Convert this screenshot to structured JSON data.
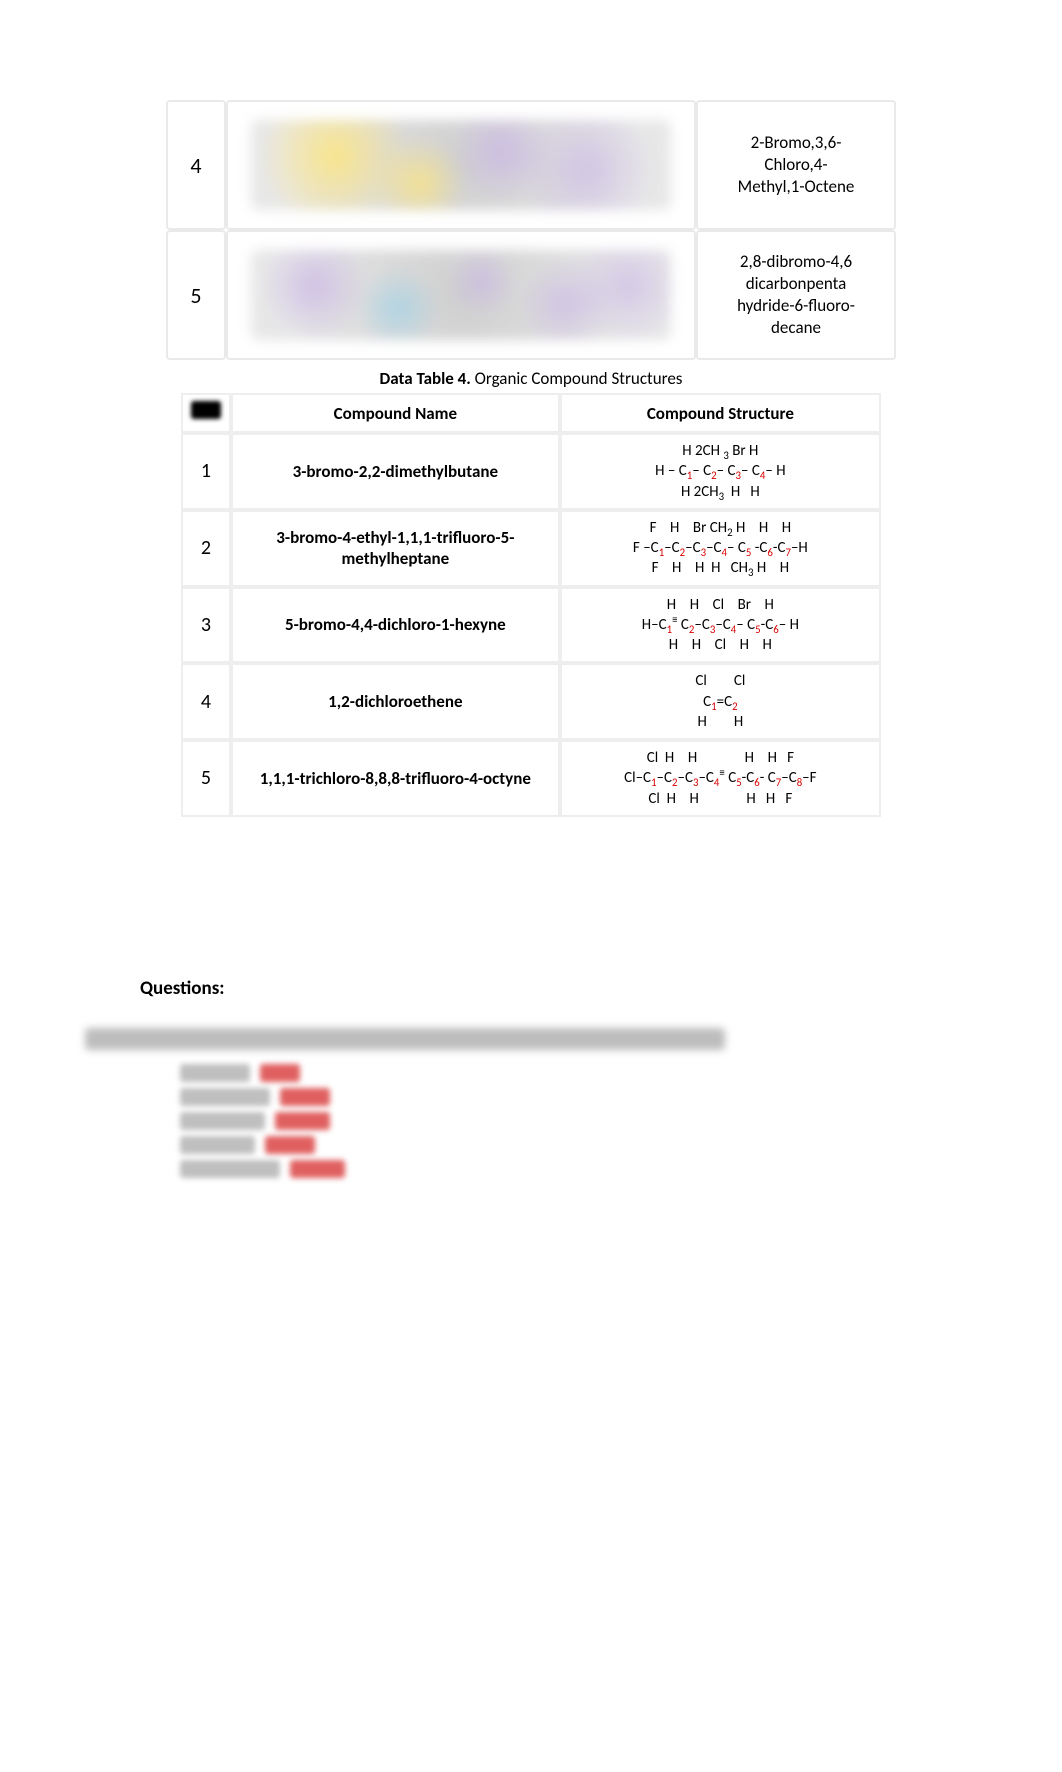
{
  "top_rows": [
    {
      "num": "4",
      "name_lines": [
        "2-Bromo,3,6-",
        "Chloro,4-",
        "Methyl,1-Octene"
      ]
    },
    {
      "num": "5",
      "name_lines": [
        "2,8-dibromo-4,6",
        "dicarbonpenta",
        "hydride-6-fluoro-",
        "decane"
      ]
    }
  ],
  "caption_bold": "Data Table 4.",
  "caption_rest": " Organic Compound Structures",
  "headers": {
    "name": "Compound Name",
    "structure": "Compound Structure"
  },
  "rows": [
    {
      "num": "1",
      "name": "3-bromo-2,2-dimethylbutane",
      "struct": [
        {
          "segs": [
            {
              "t": "H 2CH "
            },
            {
              "t": "3",
              "sub": true
            },
            {
              "t": " Br H"
            }
          ]
        },
        {
          "segs": [
            {
              "t": "H – C"
            },
            {
              "t": "1",
              "sub": true,
              "red": true
            },
            {
              "t": "– C"
            },
            {
              "t": "2",
              "sub": true,
              "red": true
            },
            {
              "t": "– C"
            },
            {
              "t": "3",
              "sub": true,
              "red": true
            },
            {
              "t": "– C"
            },
            {
              "t": "4",
              "sub": true,
              "red": true
            },
            {
              "t": "– H"
            }
          ]
        },
        {
          "segs": [
            {
              "t": "H 2CH"
            },
            {
              "t": "3",
              "sub": true
            },
            {
              "t": "  H   H"
            }
          ]
        }
      ]
    },
    {
      "num": "2",
      "name": "3-bromo-4-ethyl-1,1,1-trifluoro-5-methylheptane",
      "struct": [
        {
          "segs": [
            {
              "t": "F    H    Br CH"
            },
            {
              "t": "2",
              "sub": true
            },
            {
              "t": " H    H    H"
            }
          ]
        },
        {
          "segs": [
            {
              "t": "F –C"
            },
            {
              "t": "1",
              "sub": true,
              "red": true
            },
            {
              "t": "–C"
            },
            {
              "t": "2",
              "sub": true,
              "red": true
            },
            {
              "t": "–C"
            },
            {
              "t": "3",
              "sub": true,
              "red": true
            },
            {
              "t": "–C"
            },
            {
              "t": "4",
              "sub": true,
              "red": true
            },
            {
              "t": "– C"
            },
            {
              "t": "5",
              "sub": true,
              "red": true
            },
            {
              "t": " -C"
            },
            {
              "t": "6",
              "sub": true,
              "red": true
            },
            {
              "t": "-C"
            },
            {
              "t": "7",
              "sub": true,
              "red": true
            },
            {
              "t": "–H"
            }
          ]
        },
        {
          "segs": [
            {
              "t": "F    H    H  H   CH"
            },
            {
              "t": "3",
              "sub": true
            },
            {
              "t": " H    H"
            }
          ]
        }
      ]
    },
    {
      "num": "3",
      "name": "5-bromo-4,4-dichloro-1-hexyne",
      "struct": [
        {
          "segs": [
            {
              "t": "H    H    Cl    Br    H"
            }
          ]
        },
        {
          "segs": [
            {
              "t": "H–C"
            },
            {
              "t": "1",
              "sub": true,
              "red": true
            },
            {
              "t": "≡",
              "sup": true
            },
            {
              "t": " C"
            },
            {
              "t": "2",
              "sub": true,
              "red": true
            },
            {
              "t": "–C"
            },
            {
              "t": "3",
              "sub": true,
              "red": true
            },
            {
              "t": "–C"
            },
            {
              "t": "4",
              "sub": true,
              "red": true
            },
            {
              "t": "– C"
            },
            {
              "t": "5",
              "sub": true,
              "red": true
            },
            {
              "t": "-C"
            },
            {
              "t": "6",
              "sub": true,
              "red": true
            },
            {
              "t": "– H"
            }
          ]
        },
        {
          "segs": [
            {
              "t": "H    H    Cl    H    H"
            }
          ]
        }
      ]
    },
    {
      "num": "4",
      "name": "1,2-dichloroethene",
      "struct": [
        {
          "segs": [
            {
              "t": "Cl        Cl"
            }
          ]
        },
        {
          "segs": [
            {
              "t": "C"
            },
            {
              "t": "1",
              "sub": true,
              "red": true
            },
            {
              "t": "=C"
            },
            {
              "t": "2",
              "sub": true,
              "red": true
            }
          ]
        },
        {
          "segs": [
            {
              "t": "H        H"
            }
          ]
        }
      ]
    },
    {
      "num": "5",
      "name": "1,1,1-trichloro-8,8,8-trifluoro-4-octyne",
      "struct": [
        {
          "segs": [
            {
              "t": "Cl  H    H              H    H   F"
            }
          ]
        },
        {
          "segs": [
            {
              "t": "Cl–C"
            },
            {
              "t": "1",
              "sub": true,
              "red": true
            },
            {
              "t": "–C"
            },
            {
              "t": "2",
              "sub": true,
              "red": true
            },
            {
              "t": "–C"
            },
            {
              "t": "3",
              "sub": true,
              "red": true
            },
            {
              "t": "–C"
            },
            {
              "t": "4",
              "sub": true,
              "red": true
            },
            {
              "t": "≡",
              "sup": true
            },
            {
              "t": " C"
            },
            {
              "t": "5",
              "sub": true,
              "red": true
            },
            {
              "t": "-C"
            },
            {
              "t": "6",
              "sub": true,
              "red": true
            },
            {
              "t": "- C"
            },
            {
              "t": "7",
              "sub": true,
              "red": true
            },
            {
              "t": "–C"
            },
            {
              "t": "8",
              "sub": true,
              "red": true
            },
            {
              "t": "–F"
            }
          ]
        },
        {
          "segs": [
            {
              "t": "Cl  H    H              H   H   F"
            }
          ]
        }
      ]
    }
  ],
  "questions_label": "Questions:",
  "blurred_items": [
    {
      "grey_w": 70,
      "red_w": 40
    },
    {
      "grey_w": 90,
      "red_w": 50
    },
    {
      "grey_w": 85,
      "red_w": 55
    },
    {
      "grey_w": 75,
      "red_w": 50
    },
    {
      "grey_w": 100,
      "red_w": 55
    }
  ]
}
